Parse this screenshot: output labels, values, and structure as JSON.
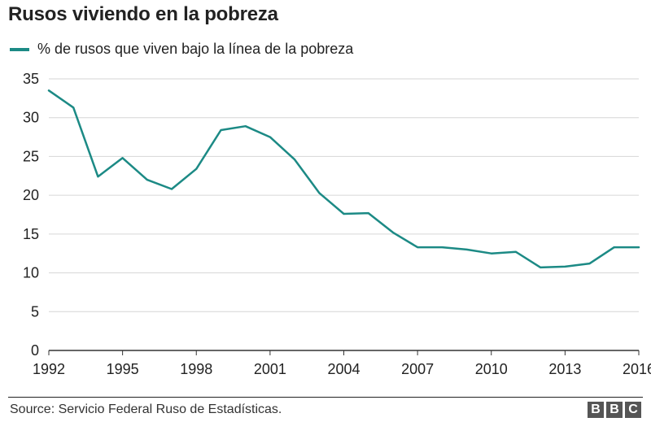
{
  "chart_data": {
    "type": "line",
    "title": "Rusos viviendo en la pobreza",
    "xlabel": "",
    "ylabel": "",
    "ylim": [
      0,
      35
    ],
    "xlim": [
      1992,
      2016
    ],
    "yticks": [
      0,
      5,
      10,
      15,
      20,
      25,
      30,
      35
    ],
    "xtick_labels": [
      "1992",
      "1995",
      "1998",
      "2001",
      "2004",
      "2007",
      "2010",
      "2013",
      "2016"
    ],
    "ytick_labels": [
      "0",
      "5",
      "10",
      "15",
      "20",
      "25",
      "30",
      "35"
    ],
    "series": [
      {
        "name": "% de rusos que viven bajo la línea de la pobreza",
        "color": "#1c8a85",
        "x": [
          1992,
          1993,
          1994,
          1995,
          1996,
          1997,
          1998,
          1999,
          2000,
          2001,
          2002,
          2003,
          2004,
          2005,
          2006,
          2007,
          2008,
          2009,
          2010,
          2011,
          2012,
          2013,
          2014,
          2015,
          2016
        ],
        "values": [
          33.5,
          31.3,
          22.4,
          24.8,
          22.0,
          20.8,
          23.4,
          28.4,
          28.9,
          27.5,
          24.6,
          20.3,
          17.6,
          17.7,
          15.2,
          13.3,
          13.3,
          13.0,
          12.5,
          12.7,
          10.7,
          10.8,
          11.2,
          13.3,
          13.3
        ]
      }
    ],
    "grid": true,
    "legend_position": "top-left"
  },
  "source": "Source: Servicio Federal Ruso de Estadísticas.",
  "logo_letters": [
    "B",
    "B",
    "C"
  ]
}
